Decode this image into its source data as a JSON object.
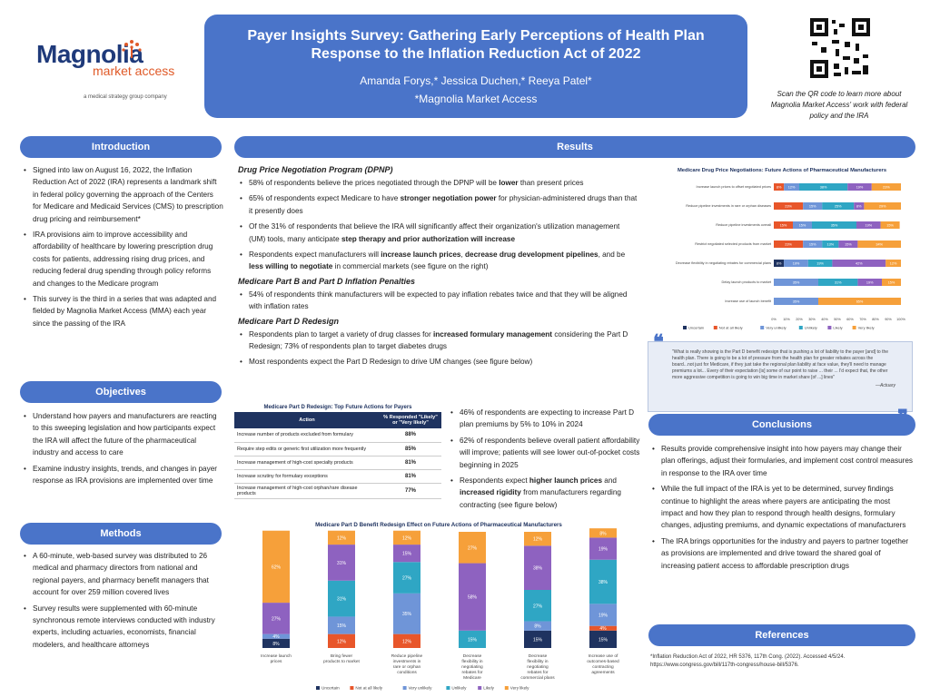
{
  "logo": {
    "name": "Magnolia",
    "name2": "market access",
    "tagline": "a medical strategy group company"
  },
  "title": {
    "main": "Payer Insights Survey: Gathering Early Perceptions of Health Plan Response to the Inflation Reduction Act of 2022",
    "authors": "Amanda Forys,* Jessica Duchen,* Reeya Patel*",
    "affiliation": "*Magnolia Market Access"
  },
  "qr_caption": "Scan the QR code to learn more about Magnolia Market Access' work with federal policy and the IRA",
  "introduction": {
    "header": "Introduction",
    "bullets": [
      "Signed into law on August 16, 2022, the Inflation Reduction Act of 2022 (IRA) represents a landmark shift in federal policy governing the approach of the Centers for Medicare and Medicaid Services (CMS) to prescription drug pricing and reimbursement*",
      "IRA provisions aim to improve accessibility and affordability of healthcare by lowering prescription drug costs for patients, addressing rising drug prices, and reducing federal drug spending through policy reforms and changes to the Medicare program",
      "This survey is the third in a series that was adapted and fielded by Magnolia Market Access (MMA) each year since the passing of the IRA"
    ]
  },
  "objectives": {
    "header": "Objectives",
    "bullets": [
      "Understand how payers and manufacturers are reacting to this sweeping legislation and how participants expect the IRA will affect the future of the pharmaceutical industry and access to care",
      "Examine industry insights, trends, and changes in payer response as IRA provisions are implemented over time"
    ]
  },
  "methods": {
    "header": "Methods",
    "bullets": [
      "A 60-minute, web-based survey was distributed to 26 medical and pharmacy directors from national and regional payers, and pharmacy benefit managers that account for over 259 million covered lives",
      "Survey results were supplemented with 60-minute synchronous remote interviews conducted with industry experts, including actuaries, economists, financial modelers, and healthcare attorneys"
    ]
  },
  "results": {
    "header": "Results",
    "dpnp_title": "Drug Price Negotiation Program (DPNP)",
    "dpnp_b1_pre": "58% of respondents believe the prices negotiated through the DPNP will be ",
    "dpnp_b1_bold": "lower",
    "dpnp_b1_post": " than present prices",
    "dpnp_b2_pre": "65% of respondents expect Medicare to have ",
    "dpnp_b2_bold": "stronger negotiation power",
    "dpnp_b2_post": " for physician-administered drugs than that it presently does",
    "dpnp_b3_pre": "Of the 31% of respondents that believe the IRA will significantly affect their organization's utilization management (UM) tools, many anticipate ",
    "dpnp_b3_bold": "step therapy and prior authorization will increase",
    "dpnp_b4_pre": "Respondents expect manufacturers will ",
    "dpnp_b4_bold1": "increase launch prices",
    "dpnp_b4_mid": ", ",
    "dpnp_b4_bold2": "decrease drug development pipelines",
    "dpnp_b4_mid2": ", and be ",
    "dpnp_b4_bold3": "less willing to negotiate",
    "dpnp_b4_post": " in commercial markets (see figure on the right)",
    "partbd_title": "Medicare Part B and Part D Inflation Penalties",
    "partbd_b1": "54% of respondents think manufacturers will be expected to pay inflation rebates twice and that they will be aligned with inflation rates",
    "partd_title": "Medicare Part D Redesign",
    "partd_b1_pre": "Respondents plan to target a variety of drug classes for ",
    "partd_b1_bold": "increased formulary management",
    "partd_b1_post": " considering the Part D Redesign; 73% of respondents plan to target diabetes drugs",
    "partd_b2": "Most respondents expect the Part D Redesign to drive UM changes (see figure below)",
    "right_b1": "46% of respondents are expecting to increase Part D plan premiums by 5% to 10% in 2024",
    "right_b2": "62% of respondents believe overall patient affordability will improve; patients will see lower out-of-pocket costs beginning in 2025",
    "right_b3_pre": "Respondents expect ",
    "right_b3_bold1": "higher launch prices",
    "right_b3_mid": " and ",
    "right_b3_bold2": "increased rigidity",
    "right_b3_post": " from manufacturers regarding contracting (see figure below)"
  },
  "table": {
    "title": "Medicare Part D Redesign: Top Future Actions for Payers",
    "col1": "Action",
    "col2": "% Responded \"Likely\" or \"Very likely\"",
    "rows": [
      {
        "action": "Increase number of products excluded from formulary",
        "pct": "88%"
      },
      {
        "action": "Require step edits or generic first utilization more frequently",
        "pct": "85%"
      },
      {
        "action": "Increase management of high-cost specialty products",
        "pct": "81%"
      },
      {
        "action": "Increase scrutiny for formulary exceptions",
        "pct": "81%"
      },
      {
        "action": "Increase management of high-cost orphan/rare disease products",
        "pct": "77%"
      }
    ]
  },
  "quote": {
    "text": "\"What is really showing is the Part D benefit redesign that is pushing a lot of liability to the payer [and] to the health plan. There is going to be a lot of pressure from the health plan for greater rebates across the board...not just for Medicare, if they just take the regional plan liability at face value, they'll need to manage premiums a lot... Every of their expectation [is] some of our point to raise ... their ... I'd expect that, the other more aggressive competition is going to win big time in market share [of ...] lines\"",
    "attribution": "—Actuary"
  },
  "conclusions": {
    "header": "Conclusions",
    "bullets": [
      "Results provide comprehensive insight into how payers may change their plan offerings, adjust their formularies, and implement cost control measures in response to the IRA over time",
      "While the full impact of the IRA is yet to be determined, survey findings continue to highlight the areas where payers are anticipating the most impact and how they plan to respond through health designs, formulary changes, adjusting premiums, and dynamic expectations of manufacturers",
      "The IRA brings opportunities for the industry and payers to partner together as provisions are implemented and drive toward the shared goal of increasing patient access to affordable prescription drugs"
    ]
  },
  "references": {
    "header": "References",
    "text": "*Inflation Reduction Act of 2022, HR 5376, 117th Cong. (2022). Accessed 4/5/24. https://www.congress.gov/bill/117th-congress/house-bill/5376."
  },
  "colors": {
    "Uncertain": "#1f3360",
    "Not at all likely": "#e8562a",
    "Very unlikely": "#6f95d8",
    "Unlikely": "#2fa6c4",
    "Likely": "#8e62c0",
    "Very likely": "#f6a03a"
  },
  "chart_data": [
    {
      "type": "bar",
      "orientation": "horizontal",
      "stacked": true,
      "title": "Medicare Drug Price Negotiations: Future Actions of Pharmaceutical Manufacturers",
      "categories": [
        "Increase launch prices to offset negotiated prices",
        "Reduce pipeline investments in rare or orphan diseases",
        "Reduce pipeline investments overall",
        "Restrict negotiated selected products from market",
        "Decrease flexibility in negotiating rebates for commercial plans",
        "Delay launch products to market",
        "Increase use of launch benefit"
      ],
      "series": [
        {
          "name": "Uncertain",
          "values": [
            0,
            0,
            0,
            0,
            8,
            0,
            0
          ]
        },
        {
          "name": "Not at all likely",
          "values": [
            8,
            23,
            15,
            23,
            0,
            0,
            0
          ]
        },
        {
          "name": "Very unlikely",
          "values": [
            12,
            15,
            15,
            15,
            19,
            35,
            35
          ]
        },
        {
          "name": "Unlikely",
          "values": [
            38,
            25,
            35,
            13,
            19,
            31,
            0
          ]
        },
        {
          "name": "Likely",
          "values": [
            19,
            8,
            19,
            15,
            42,
            19,
            0
          ]
        },
        {
          "name": "Very likely",
          "values": [
            23,
            29,
            15,
            34,
            12,
            15,
            65
          ]
        }
      ],
      "xlim": [
        0,
        100
      ],
      "xticks": [
        "0%",
        "10%",
        "20%",
        "30%",
        "40%",
        "50%",
        "60%",
        "70%",
        "80%",
        "90%",
        "100%"
      ],
      "legend": "bottom"
    },
    {
      "type": "bar",
      "stacked": true,
      "title": "Medicare Part D Benefit Redesign Effect on Future Actions of Pharmaceutical Manufacturers",
      "categories": [
        "Increase launch prices",
        "Bring fewer products to market",
        "Reduce pipeline investments in rare or orphan conditions",
        "Decrease flexibility in negotiating rebates for Medicare",
        "Decrease flexibility in negotiating rebates for commercial plans",
        "Increase use of outcomes-based contracting agreements"
      ],
      "series": [
        {
          "name": "Uncertain",
          "values": [
            8,
            0,
            0,
            0,
            15,
            15
          ]
        },
        {
          "name": "Not at all likely",
          "values": [
            0,
            12,
            12,
            0,
            0,
            4
          ]
        },
        {
          "name": "Very unlikely",
          "values": [
            4,
            15,
            35,
            0,
            8,
            19
          ]
        },
        {
          "name": "Unlikely",
          "values": [
            0,
            31,
            27,
            15,
            27,
            38
          ]
        },
        {
          "name": "Likely",
          "values": [
            27,
            31,
            15,
            58,
            38,
            19
          ]
        },
        {
          "name": "Very likely",
          "values": [
            62,
            12,
            12,
            27,
            12,
            8
          ]
        }
      ],
      "ylim": [
        0,
        100
      ],
      "legend": "bottom"
    }
  ]
}
